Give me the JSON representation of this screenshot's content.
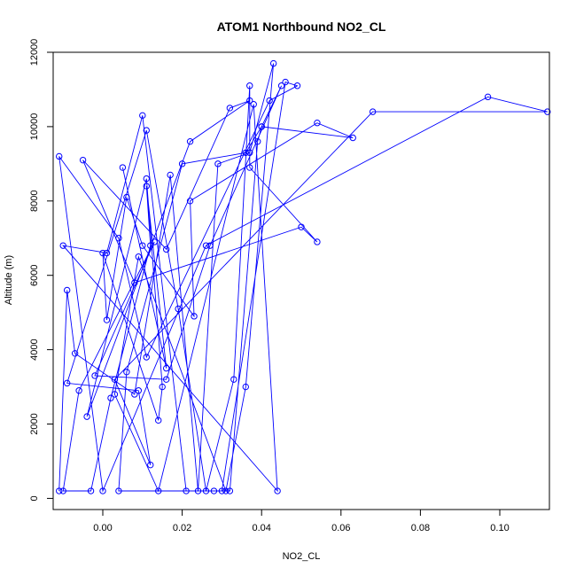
{
  "chart_data": {
    "type": "line",
    "title": "ATOM1 Northbound NO2_CL",
    "xlabel": "NO2_CL",
    "ylabel": "Altitude (m)",
    "xlim": [
      -0.0125,
      0.1125
    ],
    "ylim": [
      -300,
      12000
    ],
    "xticks": [
      0.0,
      0.02,
      0.04,
      0.06,
      0.08,
      0.1
    ],
    "xtick_labels": [
      "0.00",
      "0.02",
      "0.04",
      "0.06",
      "0.08",
      "0.10"
    ],
    "yticks": [
      0,
      2000,
      4000,
      6000,
      8000,
      10000,
      12000
    ],
    "ytick_labels": [
      "0",
      "2000",
      "4000",
      "6000",
      "8000",
      "10000",
      "12000"
    ],
    "grid": false,
    "legend": "none",
    "series": [
      {
        "color": "#0000ff",
        "marker": "open-circle",
        "x": [
          -0.011,
          -0.009,
          -0.007,
          0.008,
          0.017,
          0.024,
          0.029,
          0.037,
          0.043,
          0.036,
          0.031,
          0.009,
          0.003,
          0.014,
          0.038,
          0.044,
          -0.01,
          0.001,
          0.01,
          0.021,
          0.028,
          0.03,
          0.046,
          0.049,
          0.042,
          0.011,
          0.004,
          -0.011,
          0.0,
          0.026,
          0.097,
          0.112,
          0.068,
          0.003,
          0.012,
          0.009,
          -0.009,
          0.011,
          0.019,
          0.026,
          0.033,
          0.037,
          0.037,
          0.054,
          0.05,
          0.008,
          -0.005,
          0.016,
          0.032,
          0.037,
          0.022,
          -0.004,
          0.011,
          0.015,
          0.014,
          0.0,
          0.001,
          0.006,
          0.01,
          0.023,
          0.022,
          0.054,
          0.063,
          0.04,
          0.036,
          0.02,
          0.006,
          0.004,
          0.032,
          0.039,
          0.04,
          0.045,
          0.027,
          0.016,
          -0.002,
          0.013,
          -0.006,
          -0.01,
          -0.003,
          0.002,
          0.012,
          0.011,
          0.016,
          0.005
        ],
        "y": [
          200,
          5600,
          3900,
          2800,
          8700,
          200,
          9000,
          9300,
          11700,
          3000,
          200,
          6500,
          2800,
          200,
          10600,
          200,
          6800,
          6600,
          10300,
          200,
          200,
          200,
          11200,
          11100,
          10700,
          3800,
          7000,
          9200,
          200,
          6800,
          10800,
          10400,
          10400,
          3200,
          900,
          2900,
          3100,
          9900,
          5100,
          200,
          3200,
          11100,
          8900,
          6900,
          7300,
          5800,
          9100,
          6700,
          10500,
          10700,
          9600,
          2200,
          8600,
          3000,
          2100,
          6600,
          4800,
          8100,
          6800,
          4900,
          8000,
          10100,
          9700,
          10000,
          9300,
          9000,
          3400,
          200,
          200,
          9600,
          10000,
          11100,
          6800,
          3200,
          3300,
          6900,
          2900,
          200,
          200,
          2700,
          6800,
          8400,
          3500,
          8900
        ]
      }
    ]
  }
}
